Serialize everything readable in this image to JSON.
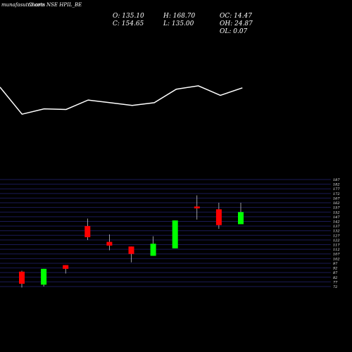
{
  "watermark": "munafasutra.com",
  "title": "Charts NSE HPIL_BE",
  "ohlc_info": {
    "open": "O: 135.10",
    "high": "H: 168.70",
    "oc": "OC: 14.47",
    "close": "C: 154.65",
    "low": "L: 135.00",
    "oh": "OH: 24.87",
    "ol": "OL: 0.07"
  },
  "colors": {
    "background": "#000000",
    "up": "#00ff00",
    "down": "#ff0000",
    "grid": "#1a1a55",
    "line": "#ffffff",
    "text": "#ffffff"
  },
  "chart_data": [
    {
      "type": "line",
      "title": "",
      "x": [
        0,
        1,
        2,
        3,
        4,
        5,
        6,
        7,
        8,
        9,
        10,
        11
      ],
      "values": [
        124,
        164,
        156,
        157,
        143,
        147,
        151,
        147,
        127,
        122,
        136,
        125
      ],
      "note_units": "relative (no axis printed)"
    },
    {
      "type": "candlestick",
      "title": "",
      "y_ticks": [
        "187",
        "182",
        "177",
        "172",
        "167",
        "162",
        "157",
        "152",
        "147",
        "142",
        "137",
        "132",
        "127",
        "122",
        "117",
        "112",
        "107",
        "102",
        "97",
        "92",
        "87",
        "82",
        "77",
        "72"
      ],
      "ylim": [
        72,
        187
      ],
      "grid": true,
      "candles": [
        {
          "open": 88,
          "high": 89,
          "low": 71,
          "close": 75
        },
        {
          "open": 74,
          "high": 91,
          "low": 72,
          "close": 91
        },
        {
          "open": 95,
          "high": 95,
          "low": 86,
          "close": 91
        },
        {
          "open": 137,
          "high": 145,
          "low": 122,
          "close": 125
        },
        {
          "open": 120,
          "high": 128,
          "low": 111,
          "close": 116
        },
        {
          "open": 115,
          "high": 115,
          "low": 98,
          "close": 107
        },
        {
          "open": 105,
          "high": 126,
          "low": 105,
          "close": 118
        },
        {
          "open": 113,
          "high": 143,
          "low": 113,
          "close": 143
        },
        {
          "open": 158,
          "high": 170,
          "low": 144,
          "close": 156
        },
        {
          "open": 155,
          "high": 162,
          "low": 134,
          "close": 138
        },
        {
          "open": 139,
          "high": 162,
          "low": 139,
          "close": 152
        }
      ]
    }
  ]
}
